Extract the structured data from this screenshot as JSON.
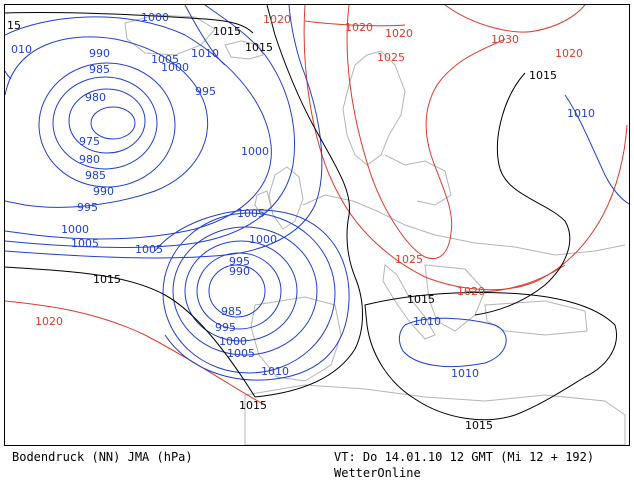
{
  "map": {
    "title": "Bodendruck (NN) JMA (hPa)",
    "valid_time": "VT: Do 14.01.10 12 GMT (Mi 12 + 192)",
    "brand": "WetterOnline",
    "colors": {
      "low_isobar": "#1f3fcf",
      "high_isobar": "#e03a2a",
      "ref_isobar": "#000000",
      "coast": "#b4b4b4"
    },
    "labels": {
      "blue": [
        "1000",
        "990",
        "985",
        "980",
        "975",
        "980",
        "985",
        "990",
        "995",
        "1000",
        "1005",
        "1005",
        "995",
        "1000",
        "1010",
        "1005",
        "1000",
        "1005",
        "1010",
        "995",
        "990",
        "985",
        "995",
        "1000",
        "1005",
        "1010",
        "1010",
        "1010",
        "010",
        "1010"
      ],
      "red": [
        "1020",
        "1020",
        "1020",
        "1025",
        "1030",
        "1020",
        "1025",
        "1020",
        "1020"
      ],
      "black": [
        "1015",
        "1015",
        "1015",
        "1015",
        "1015",
        "1015",
        "1015",
        "15"
      ]
    }
  }
}
